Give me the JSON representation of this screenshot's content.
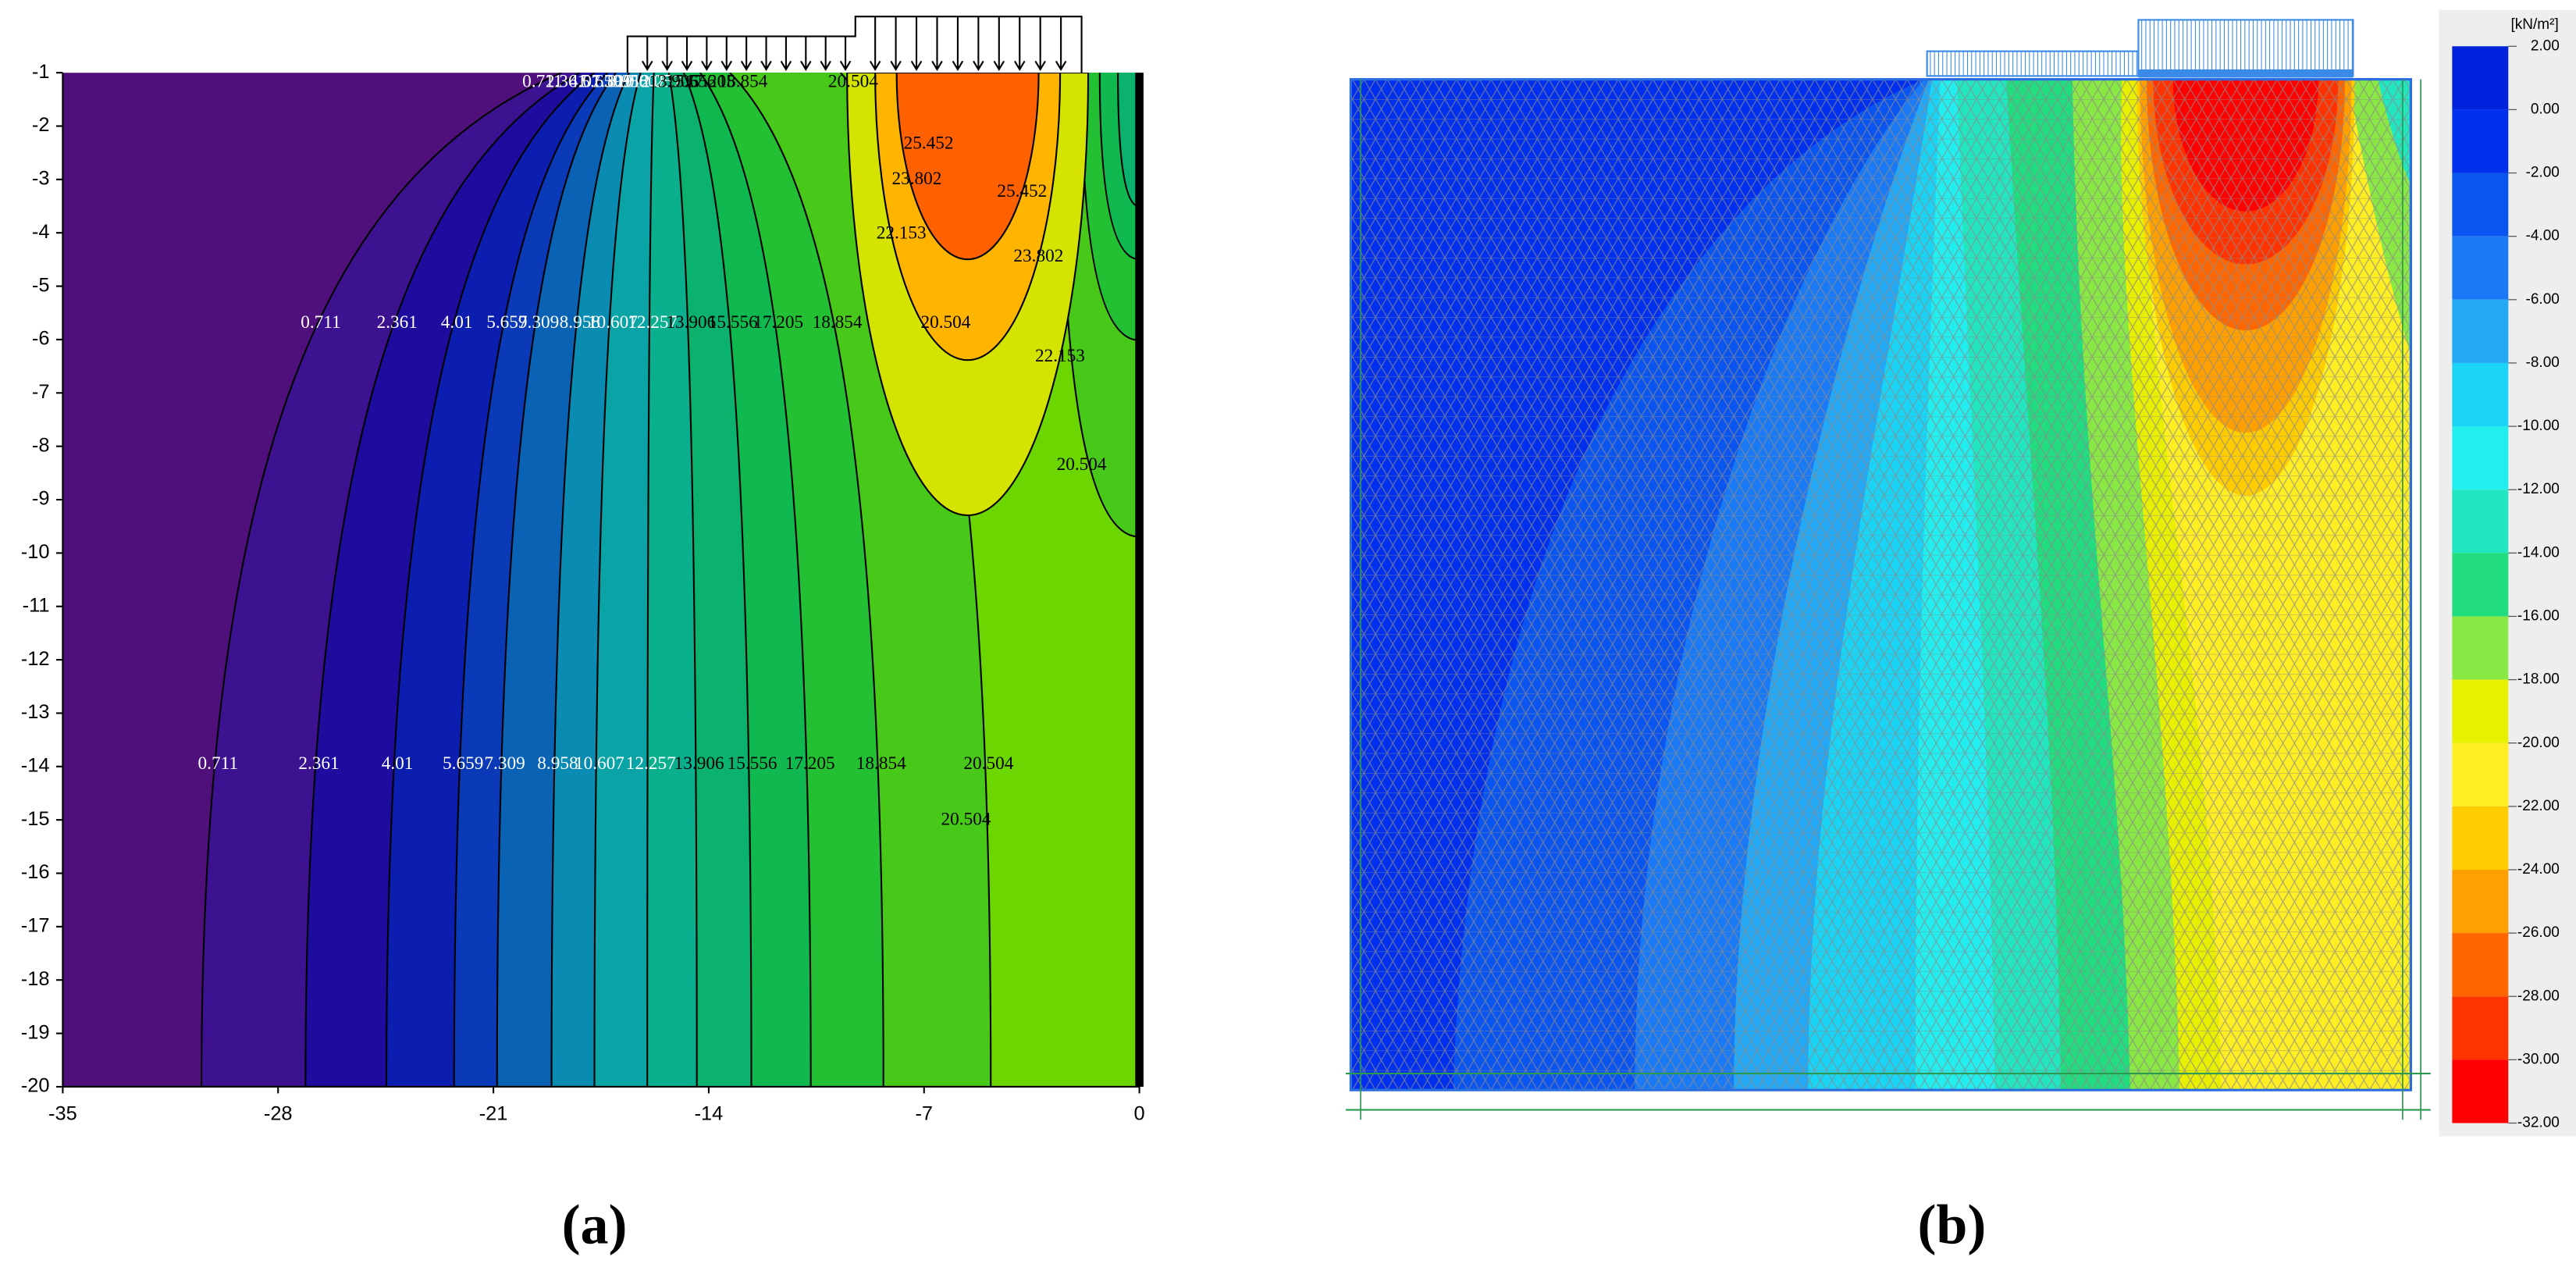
{
  "chart_data": [
    {
      "type": "contour",
      "caption": "(a)",
      "xlim": [
        -35,
        0
      ],
      "ylim": [
        -20,
        -1
      ],
      "xticks": [
        -35,
        -28,
        -21,
        -14,
        -7,
        0
      ],
      "yticks": [
        -1,
        -2,
        -3,
        -4,
        -5,
        -6,
        -7,
        -8,
        -9,
        -10,
        -11,
        -12,
        -13,
        -14,
        -15,
        -16,
        -17,
        -18,
        -19,
        -20
      ],
      "levels": [
        0.711,
        2.361,
        4.01,
        5.659,
        7.309,
        8.958,
        10.607,
        12.257,
        13.906,
        15.556,
        17.205,
        18.854,
        20.504,
        22.153,
        23.802,
        25.452
      ],
      "colors": [
        "#50107c",
        "#3c1290",
        "#1e0c9e",
        "#0c1eb0",
        "#0a3ab8",
        "#0a62b4",
        "#0a8cb2",
        "#0aa4a6",
        "#0aaf8e",
        "#0ab26e",
        "#10b850",
        "#22c032",
        "#48c818",
        "#6cd600",
        "#d4e400",
        "#ffb400",
        "#ff6000"
      ]
    },
    {
      "type": "contour_mesh",
      "caption": "(b)",
      "colorbar_label": "[kN/m²]",
      "colorbar_ticks": [
        {
          "value": 2,
          "label": "2.00"
        },
        {
          "value": 0,
          "label": "0.00"
        },
        {
          "value": -2,
          "label": "-2.00"
        },
        {
          "value": -4,
          "label": "-4.00"
        },
        {
          "value": -6,
          "label": "-6.00"
        },
        {
          "value": -8,
          "label": "-8.00"
        },
        {
          "value": -10,
          "label": "-10.00"
        },
        {
          "value": -12,
          "label": "-12.00"
        },
        {
          "value": -14,
          "label": "-14.00"
        },
        {
          "value": -16,
          "label": "-16.00"
        },
        {
          "value": -18,
          "label": "-18.00"
        },
        {
          "value": -20,
          "label": "-20.00"
        },
        {
          "value": -22,
          "label": "-22.00"
        },
        {
          "value": -24,
          "label": "-24.00"
        },
        {
          "value": -26,
          "label": "-26.00"
        },
        {
          "value": -28,
          "label": "-28.00"
        },
        {
          "value": -30,
          "label": "-30.00"
        },
        {
          "value": -32,
          "label": "-32.00"
        }
      ],
      "colors": [
        "#0022dd",
        "#0030ee",
        "#0a55f0",
        "#1a7af5",
        "#22a8f5",
        "#1ad4f5",
        "#22eef0",
        "#22e6c0",
        "#22dc80",
        "#8ae844",
        "#e8f000",
        "#ffee22",
        "#ffcc00",
        "#ffa000",
        "#ff6600",
        "#ff3300",
        "#ff0000"
      ]
    }
  ]
}
